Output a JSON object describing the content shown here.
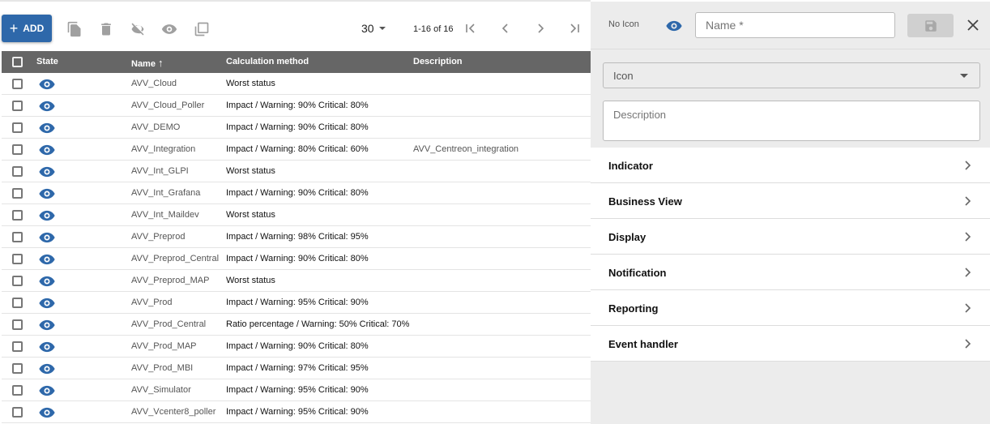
{
  "toolbar": {
    "add_label": "ADD",
    "per_page": "30",
    "page_info": "1-16 of 16",
    "icons": [
      "duplicate-icon",
      "delete-icon",
      "disable-icon",
      "enable-icon",
      "massive-change-icon"
    ]
  },
  "table": {
    "columns": [
      "State",
      "Name",
      "Calculation method",
      "Description"
    ],
    "sort_indicator": "↑",
    "rows": [
      {
        "name": "AVV_Cloud",
        "method": "Worst status",
        "description": ""
      },
      {
        "name": "AVV_Cloud_Poller",
        "method": "Impact / Warning: 90% Critical: 80%",
        "description": ""
      },
      {
        "name": "AVV_DEMO",
        "method": "Impact / Warning: 90% Critical: 80%",
        "description": ""
      },
      {
        "name": "AVV_Integration",
        "method": "Impact / Warning: 80% Critical: 60%",
        "description": "AVV_Centreon_integration"
      },
      {
        "name": "AVV_Int_GLPI",
        "method": "Worst status",
        "description": ""
      },
      {
        "name": "AVV_Int_Grafana",
        "method": "Impact / Warning: 90% Critical: 80%",
        "description": ""
      },
      {
        "name": "AVV_Int_Maildev",
        "method": "Worst status",
        "description": ""
      },
      {
        "name": "AVV_Preprod",
        "method": "Impact / Warning: 98% Critical: 95%",
        "description": ""
      },
      {
        "name": "AVV_Preprod_Central",
        "method": "Impact / Warning: 90% Critical: 80%",
        "description": ""
      },
      {
        "name": "AVV_Preprod_MAP",
        "method": "Worst status",
        "description": ""
      },
      {
        "name": "AVV_Prod",
        "method": "Impact / Warning: 95% Critical: 90%",
        "description": ""
      },
      {
        "name": "AVV_Prod_Central",
        "method": "Ratio percentage / Warning: 50% Critical: 70%",
        "description": ""
      },
      {
        "name": "AVV_Prod_MAP",
        "method": "Impact / Warning: 90% Critical: 80%",
        "description": ""
      },
      {
        "name": "AVV_Prod_MBI",
        "method": "Impact / Warning: 97% Critical: 95%",
        "description": ""
      },
      {
        "name": "AVV_Simulator",
        "method": "Impact / Warning: 95% Critical: 90%",
        "description": ""
      },
      {
        "name": "AVV_Vcenter8_poller",
        "method": "Impact / Warning: 95% Critical: 90%",
        "description": ""
      }
    ]
  },
  "panel": {
    "no_icon": "No Icon",
    "name_placeholder": "Name *",
    "icon_label": "Icon",
    "description_placeholder": "Description",
    "sections": [
      "Indicator",
      "Business View",
      "Display",
      "Notification",
      "Reporting",
      "Event handler"
    ]
  },
  "colors": {
    "accent": "#2e68aa",
    "header": "#666666"
  }
}
